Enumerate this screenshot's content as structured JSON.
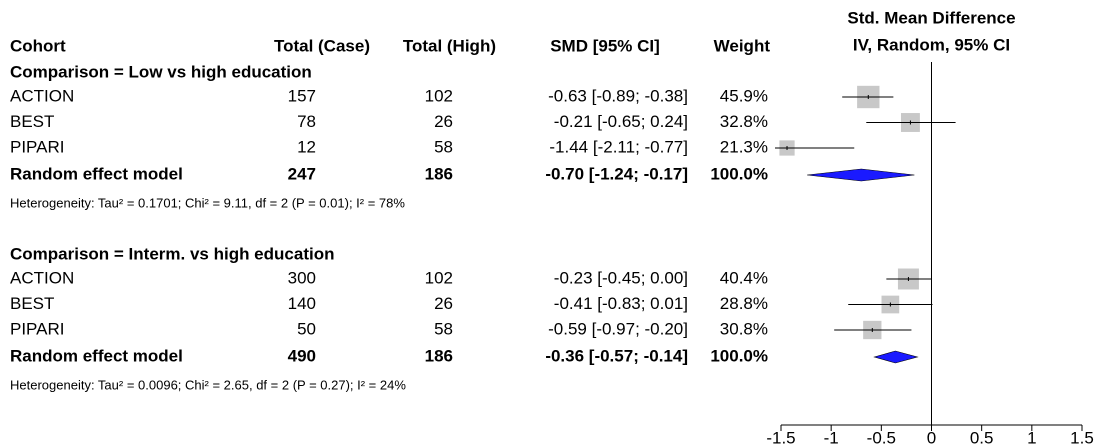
{
  "chart_data": {
    "type": "forest",
    "headers": {
      "cohort": "Cohort",
      "total_case": "Total (Case)",
      "total_high": "Total (High)",
      "ci": "SMD [95% CI]",
      "weight": "Weight",
      "plot_title": "Std. Mean Difference",
      "plot_subtitle": "IV, Random, 95% CI"
    },
    "xlim": [
      -1.5,
      1.5
    ],
    "xticks": [
      -1.5,
      -1,
      -0.5,
      0,
      0.5,
      1,
      1.5
    ],
    "square_color": "#c8c8c8",
    "diamond_color": "#1a1aff",
    "groups": [
      {
        "title": "Comparison = Low vs high education",
        "rows": [
          {
            "cohort": "ACTION",
            "total_case": 157,
            "total_high": 102,
            "smd": -0.63,
            "lower": -0.89,
            "upper": -0.38,
            "ci_label": "-0.63 [-0.89; -0.38]",
            "weight": 45.9,
            "weight_label": "45.9%"
          },
          {
            "cohort": "BEST",
            "total_case": 78,
            "total_high": 26,
            "smd": -0.21,
            "lower": -0.65,
            "upper": 0.24,
            "ci_label": "-0.21 [-0.65;  0.24]",
            "weight": 32.8,
            "weight_label": "32.8%"
          },
          {
            "cohort": "PIPARI",
            "total_case": 12,
            "total_high": 58,
            "smd": -1.44,
            "lower": -2.11,
            "upper": -0.77,
            "ci_label": "-1.44 [-2.11; -0.77]",
            "weight": 21.3,
            "weight_label": "21.3%"
          }
        ],
        "pooled": {
          "cohort": "Random effect model",
          "total_case": 247,
          "total_high": 186,
          "smd": -0.7,
          "lower": -1.24,
          "upper": -0.17,
          "ci_label": "-0.70 [-1.24; -0.17]",
          "weight": 100.0,
          "weight_label": "100.0%"
        },
        "heterogeneity": "Heterogeneity: Tau² = 0.1701; Chi² = 9.11, df = 2 (P = 0.01); I² = 78%"
      },
      {
        "title": "Comparison = Interm. vs high education",
        "rows": [
          {
            "cohort": "ACTION",
            "total_case": 300,
            "total_high": 102,
            "smd": -0.23,
            "lower": -0.45,
            "upper": 0.0,
            "ci_label": "-0.23 [-0.45;  0.00]",
            "weight": 40.4,
            "weight_label": "40.4%"
          },
          {
            "cohort": "BEST",
            "total_case": 140,
            "total_high": 26,
            "smd": -0.41,
            "lower": -0.83,
            "upper": 0.01,
            "ci_label": "-0.41 [-0.83;  0.01]",
            "weight": 28.8,
            "weight_label": "28.8%"
          },
          {
            "cohort": "PIPARI",
            "total_case": 50,
            "total_high": 58,
            "smd": -0.59,
            "lower": -0.97,
            "upper": -0.2,
            "ci_label": "-0.59 [-0.97; -0.20]",
            "weight": 30.8,
            "weight_label": "30.8%"
          }
        ],
        "pooled": {
          "cohort": "Random effect model",
          "total_case": 490,
          "total_high": 186,
          "smd": -0.36,
          "lower": -0.57,
          "upper": -0.14,
          "ci_label": "-0.36 [-0.57; -0.14]",
          "weight": 100.0,
          "weight_label": "100.0%"
        },
        "heterogeneity": "Heterogeneity: Tau² = 0.0096; Chi² = 2.65, df = 2 (P = 0.27); I² = 24%"
      }
    ]
  }
}
